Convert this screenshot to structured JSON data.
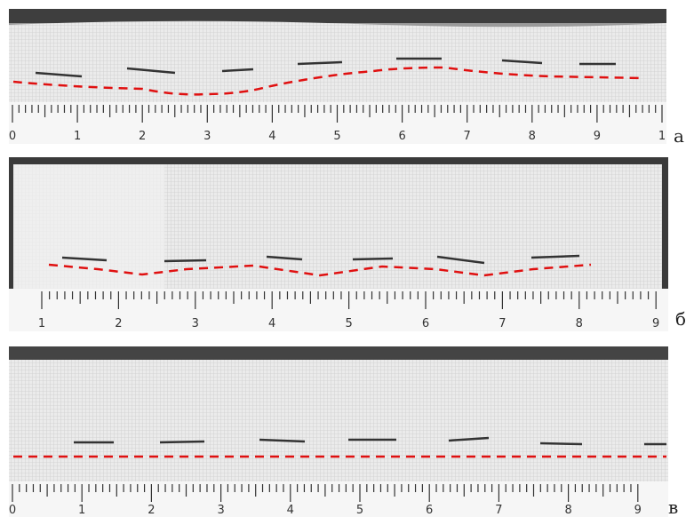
{
  "panels": [
    {
      "label": "а",
      "ruler": [
        "0",
        "1",
        "2",
        "3",
        "4",
        "5",
        "6",
        "7",
        "8",
        "9",
        "1"
      ]
    },
    {
      "label": "б",
      "ruler": [
        "1",
        "2",
        "3",
        "4",
        "5",
        "6",
        "7",
        "8",
        "9"
      ]
    },
    {
      "label": "в",
      "ruler": [
        "0",
        "1",
        "2",
        "3",
        "4",
        "5",
        "6",
        "7",
        "8",
        "9"
      ]
    }
  ]
}
